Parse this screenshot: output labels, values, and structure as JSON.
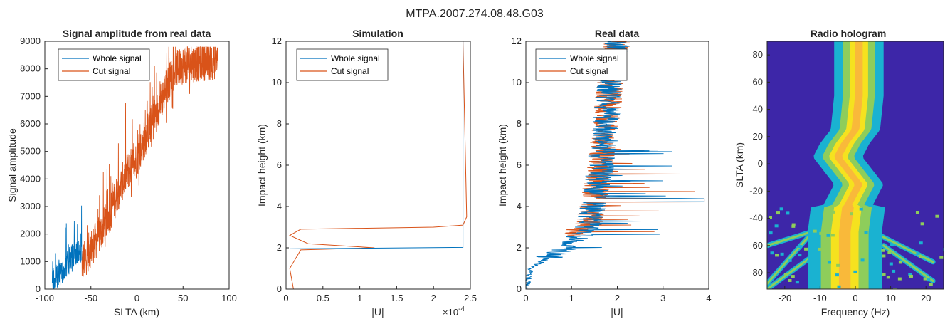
{
  "figure": {
    "suptitle": "MTPA.2007.274.08.48.G03"
  },
  "colors": {
    "whole": "#0072BD",
    "cut": "#D95319"
  },
  "chart_data": [
    {
      "id": "amp",
      "type": "line",
      "title": "Signal amplitude from real data",
      "xlabel": "SLTA (km)",
      "ylabel": "Signal amplitude",
      "xlim": [
        -100,
        100
      ],
      "ylim": [
        0,
        9000
      ],
      "xticks": [
        -100,
        -50,
        0,
        50,
        100
      ],
      "yticks": [
        0,
        1000,
        2000,
        3000,
        4000,
        5000,
        6000,
        7000,
        8000,
        9000
      ],
      "legend": {
        "position": "top-left",
        "entries": [
          "Whole signal",
          "Cut signal"
        ]
      },
      "series": [
        {
          "name": "Whole signal",
          "x_range": [
            -92,
            -60
          ],
          "trend": [
            [
              -92,
              300
            ],
            [
              -80,
              700
            ],
            [
              -70,
              1200
            ],
            [
              -60,
              1400
            ]
          ]
        },
        {
          "name": "Cut signal",
          "x_range": [
            -60,
            88
          ],
          "trend": [
            [
              -60,
              900
            ],
            [
              -50,
              1500
            ],
            [
              -40,
              2000
            ],
            [
              -30,
              2700
            ],
            [
              -20,
              3600
            ],
            [
              -10,
              4300
            ],
            [
              0,
              4700
            ],
            [
              10,
              5600
            ],
            [
              20,
              6300
            ],
            [
              30,
              7200
            ],
            [
              40,
              7900
            ],
            [
              50,
              8150
            ],
            [
              60,
              8200
            ],
            [
              70,
              8250
            ],
            [
              80,
              8250
            ],
            [
              88,
              8350
            ]
          ]
        }
      ]
    },
    {
      "id": "sim",
      "type": "line",
      "title": "Simulation",
      "xlabel": "|U|",
      "ylabel": "Impact height (km)",
      "xlim": [
        0,
        2.5
      ],
      "ylim": [
        0,
        12
      ],
      "xticks": [
        0,
        0.5,
        1,
        1.5,
        2,
        2.5
      ],
      "xtick_labels": [
        "0",
        "0.5",
        "1",
        "1.5",
        "2",
        "2.5"
      ],
      "yticks": [
        0,
        2,
        4,
        6,
        8,
        10,
        12
      ],
      "x_multiplier": "×10",
      "x_exponent": "-4",
      "legend": {
        "position": "top-left",
        "entries": [
          "Whole signal",
          "Cut signal"
        ]
      },
      "series": [
        {
          "name": "Whole signal",
          "points": [
            [
              0.05,
              1.95
            ],
            [
              2.4,
              2.02
            ],
            [
              2.4,
              12
            ]
          ]
        },
        {
          "name": "Cut signal",
          "points": [
            [
              0.1,
              0
            ],
            [
              0.05,
              1
            ],
            [
              0.2,
              1.9
            ],
            [
              1.2,
              2.0
            ],
            [
              0.3,
              2.2
            ],
            [
              0.05,
              2.6
            ],
            [
              0.2,
              2.9
            ],
            [
              2.0,
              3.0
            ],
            [
              2.4,
              3.1
            ],
            [
              2.45,
              3.5
            ],
            [
              2.4,
              12
            ]
          ]
        }
      ]
    },
    {
      "id": "real",
      "type": "line",
      "title": "Real data",
      "xlabel": "|U|",
      "ylabel": "Impact height (km)",
      "xlim": [
        0,
        4
      ],
      "ylim": [
        0,
        12
      ],
      "xticks": [
        0,
        1,
        2,
        3,
        4
      ],
      "yticks": [
        0,
        2,
        4,
        6,
        8,
        10,
        12
      ],
      "legend": {
        "position": "top-left",
        "entries": [
          "Whole signal",
          "Cut signal"
        ]
      },
      "series": [
        {
          "name": "Whole signal",
          "trend": [
            [
              0,
              0.05
            ],
            [
              0.1,
              1
            ],
            [
              1.0,
              2.2
            ],
            [
              1.4,
              3.2
            ],
            [
              1.5,
              4.5
            ],
            [
              1.6,
              5.5
            ],
            [
              1.7,
              7
            ],
            [
              1.8,
              9
            ],
            [
              1.9,
              11
            ],
            [
              2.0,
              12
            ]
          ]
        },
        {
          "name": "Cut signal",
          "trend": [
            [
              0,
              0.05
            ],
            [
              0.1,
              1
            ],
            [
              1.0,
              2.6
            ],
            [
              1.4,
              3.3
            ],
            [
              1.5,
              4.5
            ],
            [
              1.6,
              5.5
            ],
            [
              1.7,
              7
            ],
            [
              1.8,
              9
            ],
            [
              1.9,
              11
            ],
            [
              2.0,
              12
            ]
          ]
        }
      ]
    },
    {
      "id": "holo",
      "type": "heatmap",
      "title": "Radio hologram",
      "xlabel": "Frequency (Hz)",
      "ylabel": "SLTA (km)",
      "xlim": [
        -25,
        25
      ],
      "ylim": [
        -92,
        90
      ],
      "xticks": [
        -20,
        -10,
        0,
        10,
        20
      ],
      "yticks": [
        -80,
        -60,
        -40,
        -20,
        0,
        20,
        40,
        60,
        80
      ],
      "ridge": [
        [
          -92,
          -3
        ],
        [
          -70,
          -3
        ],
        [
          -50,
          -3
        ],
        [
          -30,
          -2
        ],
        [
          -15,
          1
        ],
        [
          -5,
          -2
        ],
        [
          5,
          -5
        ],
        [
          15,
          -3
        ],
        [
          25,
          0
        ],
        [
          50,
          1
        ],
        [
          90,
          1
        ]
      ],
      "colors": {
        "background": "#3D26A8",
        "low": "#1AB2D1",
        "mid": "#8ECD5B",
        "high": "#F5E21F",
        "peak": "#F9B93A"
      }
    }
  ]
}
